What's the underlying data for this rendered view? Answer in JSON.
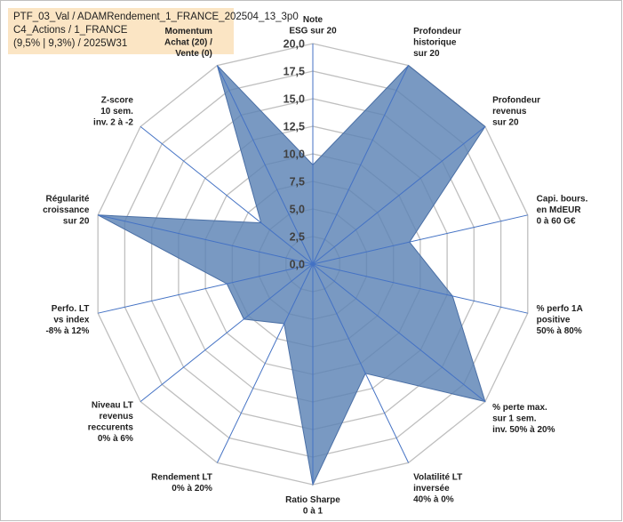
{
  "header": {
    "line1": "PTF_03_Val / ADAMRendement_1_FRANCE_202504_13_3p0",
    "line2": "C4_Actions / 1_FRANCE",
    "line3": "(9,5% | 9,3%) / 2025W31"
  },
  "chart_data": {
    "type": "radar",
    "rlim": [
      0,
      20
    ],
    "ticks": [
      "0,0",
      "2,5",
      "5,0",
      "7,5",
      "10,0",
      "12,5",
      "15,0",
      "17,5",
      "20,0"
    ],
    "grid": true,
    "fill_color": "#5b82b5",
    "fill_opacity": 0.82,
    "line_color": "#4472c4",
    "grid_color": "#bfbfbf",
    "axes": [
      {
        "label": [
          "Note",
          "ESG sur 20"
        ],
        "value": 9
      },
      {
        "label": [
          "Profondeur",
          "historique",
          "sur 20"
        ],
        "value": 20
      },
      {
        "label": [
          "Profondeur",
          "revenus",
          "sur 20"
        ],
        "value": 20
      },
      {
        "label": [
          "Capi. bours.",
          "en MdEUR",
          "0 à 60 G€"
        ],
        "value": 9
      },
      {
        "label": [
          "% perfo 1A",
          "positive",
          "50% à 80%"
        ],
        "value": 13
      },
      {
        "label": [
          "% perte max.",
          "sur 1 sem.",
          "inv. 50% à 20%"
        ],
        "value": 20
      },
      {
        "label": [
          "Volatilité LT",
          "inversée",
          "40% à 0%"
        ],
        "value": 11
      },
      {
        "label": [
          "Ratio Sharpe",
          "0 à 1"
        ],
        "value": 20
      },
      {
        "label": [
          "Rendement LT",
          "0% à 20%"
        ],
        "value": 6
      },
      {
        "label": [
          "Niveau LT",
          "revenus",
          "reccurents",
          "0% à 6%"
        ],
        "value": 8
      },
      {
        "label": [
          "Perfo. LT",
          "vs index",
          "-8% à 12%"
        ],
        "value": 8
      },
      {
        "label": [
          "Régularité",
          "croissance",
          "sur 20"
        ],
        "value": 20
      },
      {
        "label": [
          "Z-score",
          "10 sem.",
          "inv. 2 à -2"
        ],
        "value": 6
      },
      {
        "label": [
          "Momentum",
          "Achat (20) /",
          "Vente (0)"
        ],
        "value": 20
      }
    ]
  }
}
